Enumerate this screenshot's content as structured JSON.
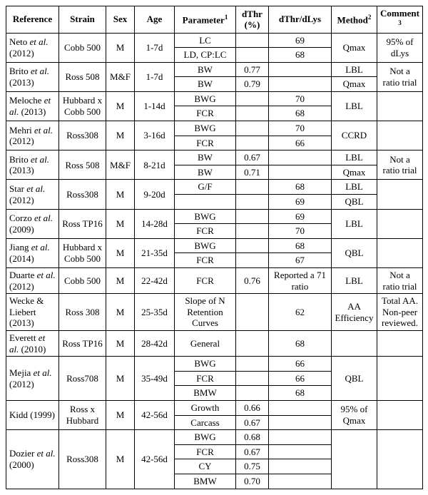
{
  "headers": {
    "reference": "Reference",
    "strain": "Strain",
    "sex": "Sex",
    "age": "Age",
    "parameter": "Parameter",
    "paramSup": "1",
    "dthrPct": "dThr (%)",
    "dthrDlys": "dThr/dLys",
    "method": "Method",
    "methodSup": "2",
    "comment": "Comment",
    "commentSup": "3"
  },
  "studies": [
    {
      "ref": "Neto et al. (2012)",
      "strain": "Cobb 500",
      "sex": "M",
      "age": "1-7d",
      "rows": [
        {
          "param": "LC",
          "dthr": "",
          "dtdl": "69"
        },
        {
          "param": "LD, CP:LC",
          "dthr": "",
          "dtdl": "68"
        }
      ],
      "method": "Qmax",
      "comment": "95% of dLys"
    },
    {
      "ref": "Brito et al. (2013)",
      "strain": "Ross 508",
      "sex": "M&F",
      "age": "1-7d",
      "rows": [
        {
          "param": "BW",
          "dthr": "0.77",
          "dtdl": "",
          "method": "LBL"
        },
        {
          "param": "BW",
          "dthr": "0.79",
          "dtdl": "",
          "method": "Qmax"
        }
      ],
      "comment": "Not a ratio trial"
    },
    {
      "ref": "Meloche et al. (2013)",
      "strain": "Hubbard x Cobb 500",
      "sex": "M",
      "age": "1-14d",
      "rows": [
        {
          "param": "BWG",
          "dthr": "",
          "dtdl": "70"
        },
        {
          "param": "FCR",
          "dthr": "",
          "dtdl": "68"
        }
      ],
      "method": "LBL",
      "comment": ""
    },
    {
      "ref": "Mehri et al. (2012)",
      "strain": "Ross308",
      "sex": "M",
      "age": "3-16d",
      "rows": [
        {
          "param": "BWG",
          "dthr": "",
          "dtdl": "70"
        },
        {
          "param": "FCR",
          "dthr": "",
          "dtdl": "66"
        }
      ],
      "method": "CCRD",
      "comment": ""
    },
    {
      "ref": "Brito et al. (2013)",
      "strain": "Ross 508",
      "sex": "M&F",
      "age": "8-21d",
      "rows": [
        {
          "param": "BW",
          "dthr": "0.67",
          "dtdl": "",
          "method": "LBL"
        },
        {
          "param": "BW",
          "dthr": "0.71",
          "dtdl": "",
          "method": "Qmax"
        }
      ],
      "comment": "Not a ratio trial"
    },
    {
      "ref": "Star et al. (2012)",
      "strain": "Ross308",
      "sex": "M",
      "age": "9-20d",
      "rows": [
        {
          "param": "G/F",
          "dthr": "",
          "dtdl": "68",
          "method": "LBL"
        },
        {
          "param": "",
          "dthr": "",
          "dtdl": "69",
          "method": "QBL"
        }
      ],
      "comment": ""
    },
    {
      "ref": "Corzo et al. (2009)",
      "strain": "Ross TP16",
      "sex": "M",
      "age": "14-28d",
      "rows": [
        {
          "param": "BWG",
          "dthr": "",
          "dtdl": "69"
        },
        {
          "param": "FCR",
          "dthr": "",
          "dtdl": "70"
        }
      ],
      "method": "LBL",
      "comment": ""
    },
    {
      "ref": "Jiang et al. (2014)",
      "strain": "Hubbard x Cobb 500",
      "sex": "M",
      "age": "21-35d",
      "rows": [
        {
          "param": "BWG",
          "dthr": "",
          "dtdl": "68"
        },
        {
          "param": "FCR",
          "dthr": "",
          "dtdl": "67"
        }
      ],
      "method": "QBL",
      "comment": ""
    },
    {
      "ref": "Duarte et al. (2012)",
      "strain": "Cobb 500",
      "sex": "M",
      "age": "22-42d",
      "rows": [
        {
          "param": "FCR",
          "dthr": "0.76",
          "dtdl": "Reported a 71 ratio"
        }
      ],
      "method": "LBL",
      "comment": "Not a ratio trial"
    },
    {
      "ref": "Wecke & Liebert (2013)",
      "strain": "Ross 308",
      "sex": "M",
      "age": "25-35d",
      "rows": [
        {
          "param": "Slope of N Retention Curves",
          "dthr": "",
          "dtdl": "62"
        }
      ],
      "method": "AA Efficiency",
      "comment": "Total AA. Non-peer reviewed."
    },
    {
      "ref": "Everett et al. (2010)",
      "strain": "Ross TP16",
      "sex": "M",
      "age": "28-42d",
      "rows": [
        {
          "param": "General",
          "dthr": "",
          "dtdl": "68"
        }
      ],
      "method": "",
      "comment": ""
    },
    {
      "ref": "Mejia et al. (2012)",
      "strain": "Ross708",
      "sex": "M",
      "age": "35-49d",
      "rows": [
        {
          "param": "BWG",
          "dthr": "",
          "dtdl": "66"
        },
        {
          "param": "FCR",
          "dthr": "",
          "dtdl": "66"
        },
        {
          "param": "BMW",
          "dthr": "",
          "dtdl": "68"
        }
      ],
      "method": "QBL",
      "comment": ""
    },
    {
      "ref": "Kidd (1999)",
      "strain": "Ross x Hubbard",
      "sex": "M",
      "age": "42-56d",
      "rows": [
        {
          "param": "Growth",
          "dthr": "0.66",
          "dtdl": ""
        },
        {
          "param": "Carcass",
          "dthr": "0.67",
          "dtdl": ""
        }
      ],
      "method": "95% of Qmax",
      "comment": ""
    },
    {
      "ref": "Dozier et al (2000)",
      "strain": "Ross308",
      "sex": "M",
      "age": "42-56d",
      "rows": [
        {
          "param": "BWG",
          "dthr": "0.68",
          "dtdl": ""
        },
        {
          "param": "FCR",
          "dthr": "0.67",
          "dtdl": ""
        },
        {
          "param": "CY",
          "dthr": "0.75",
          "dtdl": ""
        },
        {
          "param": "BMW",
          "dthr": "0.70",
          "dtdl": ""
        }
      ],
      "method": "",
      "comment": ""
    }
  ]
}
